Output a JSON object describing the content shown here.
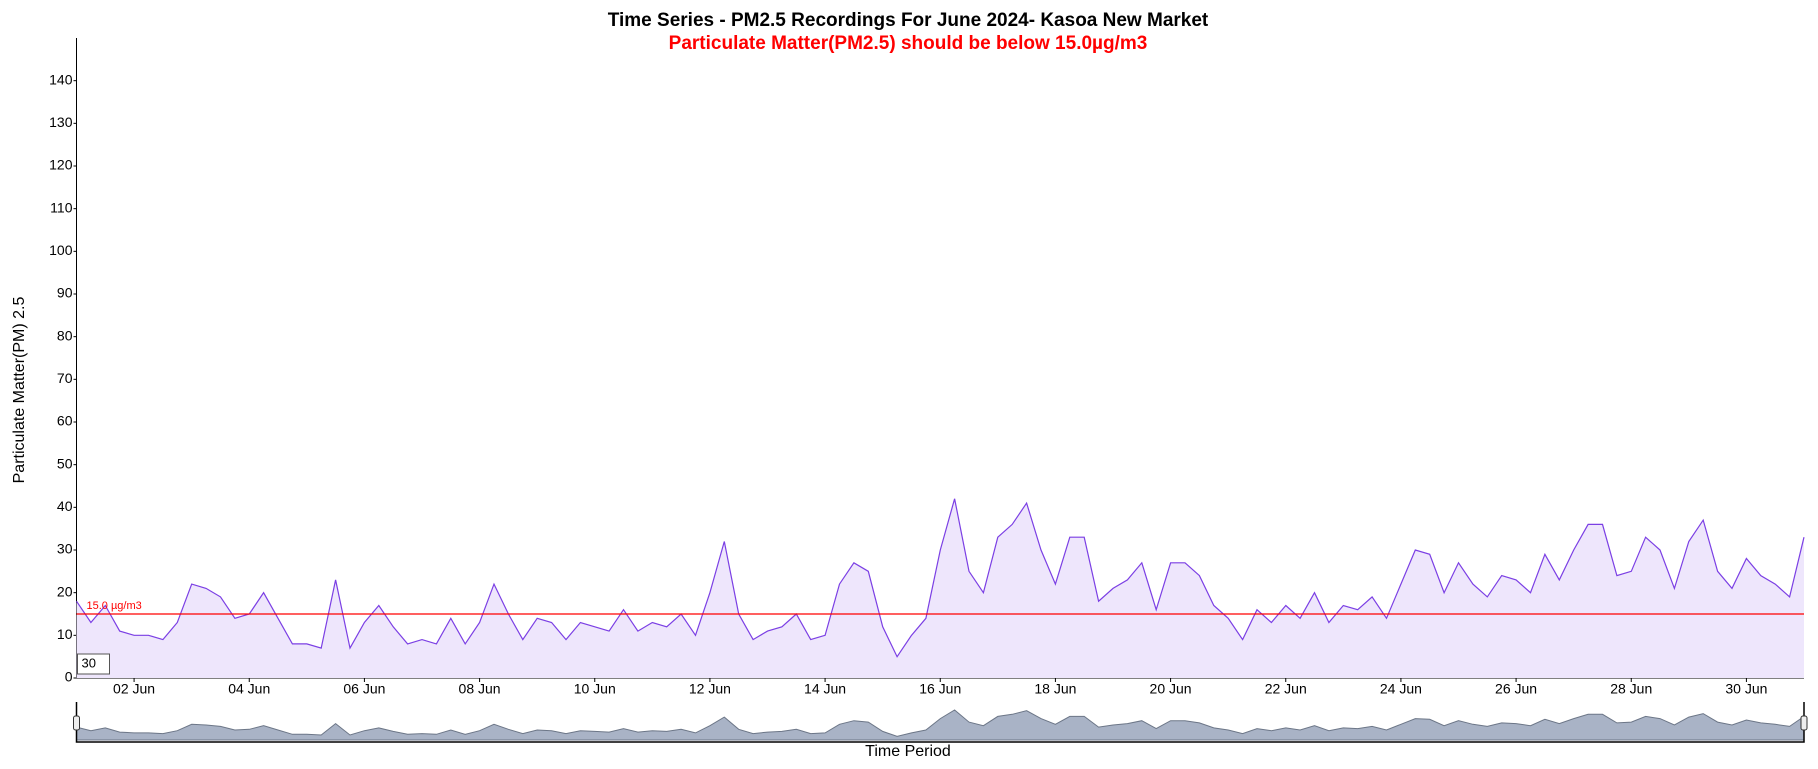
{
  "chart_data": {
    "type": "line",
    "title": "Time Series - PM2.5 Recordings For June 2024- Kasoa New Market",
    "subtitle": "Particulate Matter(PM2.5) should be below 15.0µg/m3",
    "x_label": "Time Period",
    "y_label": "Particulate Matter(PM) 2.5",
    "x": [
      1,
      1.25,
      1.5,
      1.75,
      2,
      2.25,
      2.5,
      2.75,
      3,
      3.25,
      3.5,
      3.75,
      4,
      4.25,
      4.5,
      4.75,
      5,
      5.25,
      5.5,
      5.75,
      6,
      6.25,
      6.5,
      6.75,
      7,
      7.25,
      7.5,
      7.75,
      8,
      8.25,
      8.5,
      8.75,
      9,
      9.25,
      9.5,
      9.75,
      10,
      10.25,
      10.5,
      10.75,
      11,
      11.25,
      11.5,
      11.75,
      12,
      12.25,
      12.5,
      12.75,
      13,
      13.25,
      13.5,
      13.75,
      14,
      14.25,
      14.5,
      14.75,
      15,
      15.25,
      15.5,
      15.75,
      16,
      16.25,
      16.5,
      16.75,
      17,
      17.25,
      17.5,
      17.75,
      18,
      18.25,
      18.5,
      18.75,
      19,
      19.25,
      19.5,
      19.75,
      20,
      20.25,
      20.5,
      20.75,
      21,
      21.25,
      21.5,
      21.75,
      22,
      22.25,
      22.5,
      22.75,
      23,
      23.25,
      23.5,
      23.75,
      24,
      24.25,
      24.5,
      24.75,
      25,
      25.25,
      25.5,
      25.75,
      26,
      26.25,
      26.5,
      26.75,
      27,
      27.25,
      27.5,
      27.75,
      28,
      28.25,
      28.5,
      28.75,
      29,
      29.25,
      29.5,
      29.75,
      30,
      30.25,
      30.5,
      30.75,
      31
    ],
    "values": [
      18,
      13,
      17,
      11,
      10,
      10,
      9,
      13,
      22,
      21,
      19,
      14,
      15,
      20,
      14,
      8,
      8,
      7,
      23,
      7,
      13,
      17,
      12,
      8,
      9,
      8,
      14,
      8,
      13,
      22,
      15,
      9,
      14,
      13,
      9,
      13,
      12,
      11,
      16,
      11,
      13,
      12,
      15,
      10,
      20,
      32,
      15,
      9,
      11,
      12,
      15,
      9,
      10,
      22,
      27,
      25,
      12,
      5,
      10,
      14,
      30,
      42,
      25,
      20,
      33,
      36,
      41,
      30,
      22,
      33,
      33,
      18,
      21,
      23,
      27,
      16,
      27,
      27,
      24,
      17,
      14,
      9,
      16,
      13,
      17,
      14,
      20,
      13,
      17,
      16,
      19,
      14,
      22,
      30,
      29,
      20,
      27,
      22,
      19,
      24,
      23,
      20,
      29,
      23,
      30,
      36,
      36,
      24,
      25,
      33,
      30,
      21,
      32,
      37,
      25,
      21,
      28,
      24,
      22,
      19,
      33
    ],
    "color": "#7b3fe4",
    "fill": "#eee6fc",
    "xlim": [
      1,
      31
    ],
    "ylim": [
      0,
      150
    ],
    "xticks": [
      {
        "value": 2,
        "label": "02 Jun"
      },
      {
        "value": 4,
        "label": "04 Jun"
      },
      {
        "value": 6,
        "label": "06 Jun"
      },
      {
        "value": 8,
        "label": "08 Jun"
      },
      {
        "value": 10,
        "label": "10 Jun"
      },
      {
        "value": 12,
        "label": "12 Jun"
      },
      {
        "value": 14,
        "label": "14 Jun"
      },
      {
        "value": 16,
        "label": "16 Jun"
      },
      {
        "value": 18,
        "label": "18 Jun"
      },
      {
        "value": 20,
        "label": "20 Jun"
      },
      {
        "value": 22,
        "label": "22 Jun"
      },
      {
        "value": 24,
        "label": "24 Jun"
      },
      {
        "value": 26,
        "label": "26 Jun"
      },
      {
        "value": 28,
        "label": "28 Jun"
      },
      {
        "value": 30,
        "label": "30 Jun"
      }
    ],
    "yticks": [
      0,
      10,
      20,
      30,
      40,
      50,
      60,
      70,
      80,
      90,
      100,
      110,
      120,
      130,
      140
    ],
    "threshold": {
      "value": 15,
      "label": "15.0 µg/m3",
      "color": "#ff0000"
    },
    "roll_period": 30
  }
}
